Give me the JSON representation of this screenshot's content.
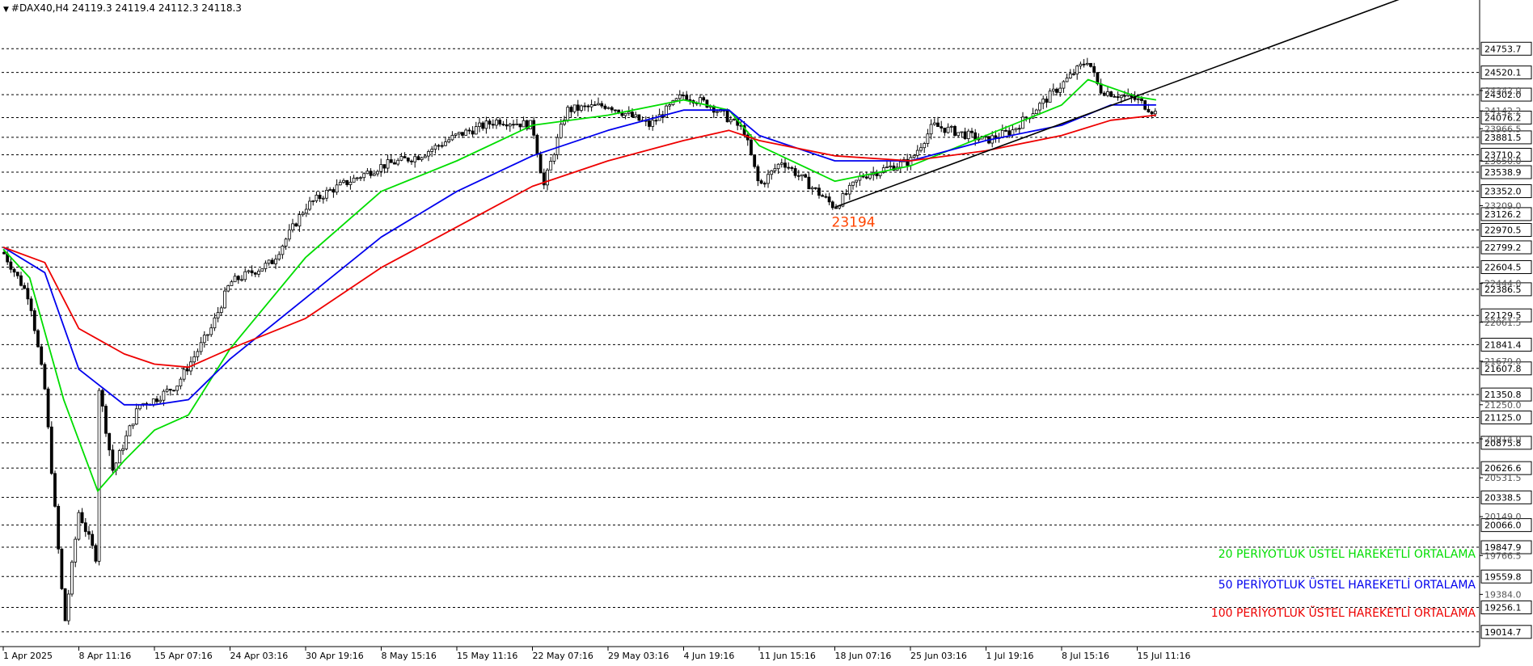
{
  "header": {
    "symbol_line": "#DAX40,H4  24119.3 24119.4 24112.3 24118.3"
  },
  "colors": {
    "background": "#ffffff",
    "grid": "#000000",
    "candle": "#000000",
    "ema20": "#00dd00",
    "ema50": "#0000ee",
    "ema100": "#ee0000",
    "trendline": "#000000",
    "annotation": "#ff4400"
  },
  "chart_data": {
    "type": "candlestick",
    "instrument": "#DAX40",
    "timeframe": "H4",
    "ohlc_last": {
      "open": 24119.3,
      "high": 24119.4,
      "low": 24112.3,
      "close": 24118.3
    },
    "ylim": [
      18870,
      25090
    ],
    "grid": "horizontal dashed at labeled levels",
    "y_tick_labels_boxed": [
      "24753.7",
      "24520.1",
      "24302.0",
      "24076.2",
      "23881.5",
      "23710.2",
      "23538.9",
      "23352.0",
      "23126.2",
      "22970.5",
      "22799.2",
      "22604.5",
      "22386.5",
      "22129.5",
      "21841.4",
      "21607.8",
      "21350.8",
      "21125.0",
      "20875.8",
      "20626.6",
      "20338.5",
      "20066.0",
      "19847.9",
      "19559.8",
      "19256.1",
      "19014.7"
    ],
    "y_tick_labels_minor": [
      "24342.0",
      "24142.2",
      "23966.5",
      "23650.0",
      "23209.0",
      "22444.0",
      "22061.5",
      "21679.0",
      "21250.0",
      "20914.0",
      "20531.5",
      "20149.0",
      "19766.5",
      "19384.0"
    ],
    "x_tick_labels": [
      "1 Apr 2025",
      "8 Apr 11:16",
      "15 Apr 07:16",
      "24 Apr 03:16",
      "30 Apr 19:16",
      "8 May 15:16",
      "15 May 11:16",
      "22 May 07:16",
      "29 May 03:16",
      "4 Jun 19:16",
      "11 Jun 15:16",
      "18 Jun 07:16",
      "25 Jun 03:16",
      "1 Jul 19:16",
      "8 Jul 15:16",
      "15 Jul 11:16"
    ],
    "price_path": [
      {
        "x": "1 Apr 2025",
        "y": 22750
      },
      {
        "x": "3 Apr",
        "y": 22300
      },
      {
        "x": "4 Apr",
        "y": 21400
      },
      {
        "x": "7 Apr",
        "y": 19200
      },
      {
        "x": "7 Apr",
        "y": 19014.7
      },
      {
        "x": "8 Apr 11:16",
        "y": 20200
      },
      {
        "x": "9 Apr",
        "y": 19700
      },
      {
        "x": "9 Apr",
        "y": 21500
      },
      {
        "x": "10 Apr",
        "y": 20600
      },
      {
        "x": "14 Apr",
        "y": 21250
      },
      {
        "x": "15 Apr 07:16",
        "y": 21300
      },
      {
        "x": "17 Apr",
        "y": 21450
      },
      {
        "x": "22 Apr",
        "y": 22000
      },
      {
        "x": "24 Apr 03:16",
        "y": 22450
      },
      {
        "x": "28 Apr",
        "y": 22650
      },
      {
        "x": "30 Apr 19:16",
        "y": 23200
      },
      {
        "x": "2 May",
        "y": 23350
      },
      {
        "x": "8 May 15:16",
        "y": 23600
      },
      {
        "x": "12 May",
        "y": 23700
      },
      {
        "x": "15 May 11:16",
        "y": 23900
      },
      {
        "x": "19 May",
        "y": 24050
      },
      {
        "x": "22 May 07:16",
        "y": 24000
      },
      {
        "x": "23 May",
        "y": 23400
      },
      {
        "x": "26 May",
        "y": 24150
      },
      {
        "x": "29 May 03:16",
        "y": 24200
      },
      {
        "x": "2 Jun",
        "y": 24000
      },
      {
        "x": "4 Jun 19:16",
        "y": 24300
      },
      {
        "x": "6 Jun",
        "y": 24200
      },
      {
        "x": "10 Jun",
        "y": 23950
      },
      {
        "x": "11 Jun 15:16",
        "y": 23400
      },
      {
        "x": "13 Jun",
        "y": 23650
      },
      {
        "x": "18 Jun 07:16",
        "y": 23194
      },
      {
        "x": "20 Jun",
        "y": 23500
      },
      {
        "x": "25 Jun 03:16",
        "y": 23650
      },
      {
        "x": "27 Jun",
        "y": 24000
      },
      {
        "x": "1 Jul 19:16",
        "y": 23850
      },
      {
        "x": "3 Jul",
        "y": 23950
      },
      {
        "x": "8 Jul 15:16",
        "y": 24400
      },
      {
        "x": "10 Jul",
        "y": 24650
      },
      {
        "x": "11 Jul",
        "y": 24350
      },
      {
        "x": "15 Jul 11:16",
        "y": 24250
      },
      {
        "x": "16 Jul",
        "y": 24118.3
      }
    ],
    "series": [
      {
        "name": "20 PERİYOTLUK ÜSTEL HAREKETLİ ORTALAMA",
        "color": "#00dd00",
        "points": [
          {
            "x": "1 Apr 2025",
            "y": 22780
          },
          {
            "x": "3 Apr",
            "y": 22500
          },
          {
            "x": "7 Apr",
            "y": 21300
          },
          {
            "x": "9 Apr",
            "y": 20400
          },
          {
            "x": "11 Apr",
            "y": 20700
          },
          {
            "x": "15 Apr 07:16",
            "y": 21000
          },
          {
            "x": "18 Apr",
            "y": 21150
          },
          {
            "x": "24 Apr 03:16",
            "y": 21800
          },
          {
            "x": "30 Apr 19:16",
            "y": 22700
          },
          {
            "x": "8 May 15:16",
            "y": 23350
          },
          {
            "x": "15 May 11:16",
            "y": 23650
          },
          {
            "x": "22 May 07:16",
            "y": 24000
          },
          {
            "x": "29 May 03:16",
            "y": 24100
          },
          {
            "x": "4 Jun 19:16",
            "y": 24250
          },
          {
            "x": "8 Jun",
            "y": 24150
          },
          {
            "x": "11 Jun 15:16",
            "y": 23800
          },
          {
            "x": "18 Jun 07:16",
            "y": 23450
          },
          {
            "x": "25 Jun 03:16",
            "y": 23600
          },
          {
            "x": "1 Jul 19:16",
            "y": 23900
          },
          {
            "x": "8 Jul 15:16",
            "y": 24200
          },
          {
            "x": "10 Jul",
            "y": 24450
          },
          {
            "x": "15 Jul 11:16",
            "y": 24280
          },
          {
            "x": "16 Jul",
            "y": 24250
          }
        ]
      },
      {
        "name": "50 PERİYOTLUK ÜSTEL HAREKETLİ ORTALAMA",
        "color": "#0000ee",
        "points": [
          {
            "x": "1 Apr 2025",
            "y": 22800
          },
          {
            "x": "4 Apr",
            "y": 22550
          },
          {
            "x": "8 Apr 11:16",
            "y": 21600
          },
          {
            "x": "11 Apr",
            "y": 21250
          },
          {
            "x": "15 Apr 07:16",
            "y": 21250
          },
          {
            "x": "18 Apr",
            "y": 21300
          },
          {
            "x": "24 Apr 03:16",
            "y": 21700
          },
          {
            "x": "30 Apr 19:16",
            "y": 22300
          },
          {
            "x": "8 May 15:16",
            "y": 22900
          },
          {
            "x": "15 May 11:16",
            "y": 23350
          },
          {
            "x": "22 May 07:16",
            "y": 23700
          },
          {
            "x": "29 May 03:16",
            "y": 23950
          },
          {
            "x": "4 Jun 19:16",
            "y": 24150
          },
          {
            "x": "8 Jun",
            "y": 24150
          },
          {
            "x": "11 Jun 15:16",
            "y": 23900
          },
          {
            "x": "18 Jun 07:16",
            "y": 23650
          },
          {
            "x": "25 Jun 03:16",
            "y": 23650
          },
          {
            "x": "1 Jul 19:16",
            "y": 23850
          },
          {
            "x": "8 Jul 15:16",
            "y": 24000
          },
          {
            "x": "12 Jul",
            "y": 24200
          },
          {
            "x": "16 Jul",
            "y": 24200
          }
        ]
      },
      {
        "name": "100 PERİYOTLUK ÜSTEL HAREKETLİ ORTALAMA",
        "color": "#ee0000",
        "points": [
          {
            "x": "1 Apr 2025",
            "y": 22800
          },
          {
            "x": "4 Apr",
            "y": 22650
          },
          {
            "x": "8 Apr 11:16",
            "y": 22000
          },
          {
            "x": "11 Apr",
            "y": 21750
          },
          {
            "x": "15 Apr 07:16",
            "y": 21650
          },
          {
            "x": "18 Apr",
            "y": 21620
          },
          {
            "x": "24 Apr 03:16",
            "y": 21800
          },
          {
            "x": "30 Apr 19:16",
            "y": 22100
          },
          {
            "x": "8 May 15:16",
            "y": 22600
          },
          {
            "x": "15 May 11:16",
            "y": 23000
          },
          {
            "x": "22 May 07:16",
            "y": 23400
          },
          {
            "x": "29 May 03:16",
            "y": 23650
          },
          {
            "x": "4 Jun 19:16",
            "y": 23850
          },
          {
            "x": "8 Jun",
            "y": 23950
          },
          {
            "x": "11 Jun 15:16",
            "y": 23850
          },
          {
            "x": "18 Jun 07:16",
            "y": 23700
          },
          {
            "x": "25 Jun 03:16",
            "y": 23650
          },
          {
            "x": "1 Jul 19:16",
            "y": 23750
          },
          {
            "x": "8 Jul 15:16",
            "y": 23900
          },
          {
            "x": "12 Jul",
            "y": 24050
          },
          {
            "x": "16 Jul",
            "y": 24100
          }
        ]
      }
    ],
    "annotations": [
      {
        "text": "23194",
        "type": "swing low label",
        "x": "18 Jun 07:16",
        "y": 23194
      }
    ],
    "trendline": {
      "from": {
        "x": "18 Jun 07:16",
        "y": 23194
      },
      "to_direction": "rising, extends beyond last bar"
    },
    "legend_labels": [
      "20 PERİYOTLUK ÜSTEL HAREKETLİ ORTALAMA",
      "50 PERİYOTLUK ÜSTEL HAREKETLİ ORTALAMA",
      "100 PERİYOTLUK ÜSTEL HAREKETLİ ORTALAMA"
    ],
    "legend_position": "bottom-right"
  }
}
